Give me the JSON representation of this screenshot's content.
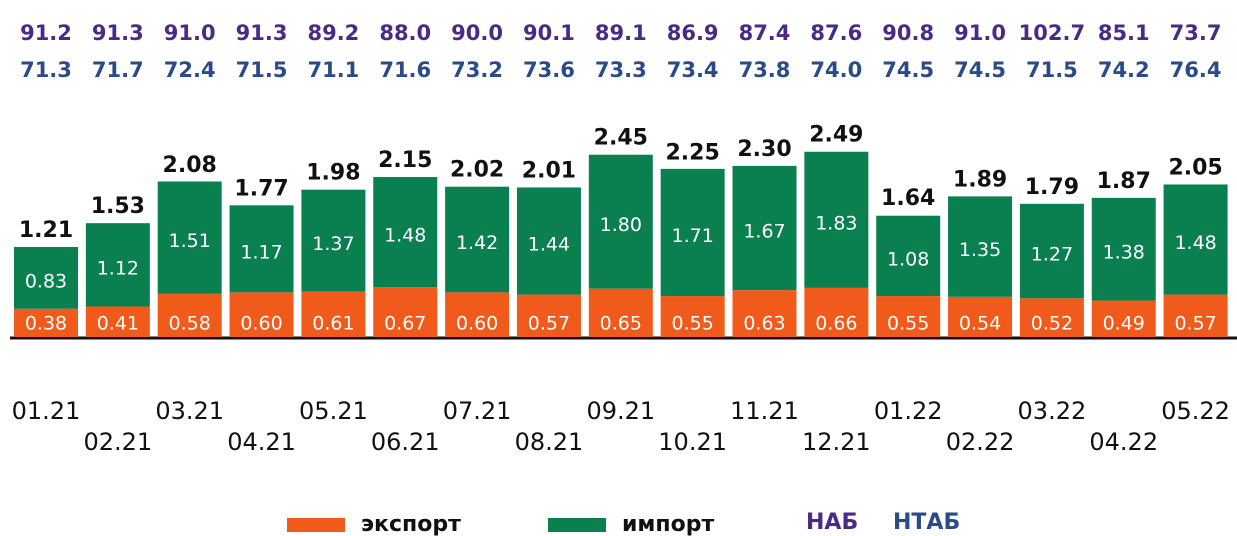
{
  "chart_data": {
    "type": "stacked_bar",
    "categories": [
      "01.21",
      "02.21",
      "03.21",
      "04.21",
      "05.21",
      "06.21",
      "07.21",
      "08.21",
      "09.21",
      "10.21",
      "11.21",
      "12.21",
      "01.22",
      "02.22",
      "03.22",
      "04.22",
      "05.22"
    ],
    "series": [
      {
        "name": "экспорт",
        "color": "#f05a1a",
        "values": [
          0.38,
          0.41,
          0.58,
          0.6,
          0.61,
          0.67,
          0.6,
          0.57,
          0.65,
          0.55,
          0.63,
          0.66,
          0.55,
          0.54,
          0.52,
          0.49,
          0.57
        ],
        "value_labels": [
          "0.38",
          "0.41",
          "0.58",
          "0.60",
          "0.61",
          "0.67",
          "0.60",
          "0.57",
          "0.65",
          "0.55",
          "0.63",
          "0.66",
          "0.55",
          "0.54",
          "0.52",
          "0.49",
          "0.57"
        ]
      },
      {
        "name": "импорт",
        "color": "#0a8050",
        "values": [
          0.83,
          1.12,
          1.51,
          1.17,
          1.37,
          1.48,
          1.42,
          1.44,
          1.8,
          1.71,
          1.67,
          1.83,
          1.08,
          1.35,
          1.27,
          1.38,
          1.48
        ],
        "value_labels": [
          "0.83",
          "1.12",
          "1.51",
          "1.17",
          "1.37",
          "1.48",
          "1.42",
          "1.44",
          "1.80",
          "1.71",
          "1.67",
          "1.83",
          "1.08",
          "1.35",
          "1.27",
          "1.38",
          "1.48"
        ]
      }
    ],
    "totals": {
      "values": [
        1.21,
        1.53,
        2.08,
        1.77,
        1.98,
        2.15,
        2.02,
        2.01,
        2.45,
        2.25,
        2.3,
        2.49,
        1.64,
        1.89,
        1.79,
        1.87,
        2.05
      ],
      "value_labels": [
        "1.21",
        "1.53",
        "2.08",
        "1.77",
        "1.98",
        "2.15",
        "2.02",
        "2.01",
        "2.45",
        "2.25",
        "2.30",
        "2.49",
        "1.64",
        "1.89",
        "1.79",
        "1.87",
        "2.05"
      ]
    },
    "rows": [
      {
        "name": "НАБ",
        "color": "#4b2a86",
        "values": [
          91.2,
          91.3,
          91.0,
          91.3,
          89.2,
          88.0,
          90.0,
          90.1,
          89.1,
          86.9,
          87.4,
          87.6,
          90.8,
          91.0,
          102.7,
          85.1,
          73.7
        ],
        "value_labels": [
          "91.2",
          "91.3",
          "91.0",
          "91.3",
          "89.2",
          "88.0",
          "90.0",
          "90.1",
          "89.1",
          "86.9",
          "87.4",
          "87.6",
          "90.8",
          "91.0",
          "102.7",
          "85.1",
          "73.7"
        ]
      },
      {
        "name": "НТАБ",
        "color": "#2a4a88",
        "values": [
          71.3,
          71.7,
          72.4,
          71.5,
          71.1,
          71.6,
          73.2,
          73.6,
          73.3,
          73.4,
          73.8,
          74.0,
          74.5,
          74.5,
          71.5,
          74.2,
          76.4
        ],
        "value_labels": [
          "71.3",
          "71.7",
          "72.4",
          "71.5",
          "71.1",
          "71.6",
          "73.2",
          "73.6",
          "73.3",
          "73.4",
          "73.8",
          "74.0",
          "74.5",
          "74.5",
          "71.5",
          "74.2",
          "76.4"
        ]
      }
    ],
    "ylim": [
      0,
      2.5
    ]
  }
}
